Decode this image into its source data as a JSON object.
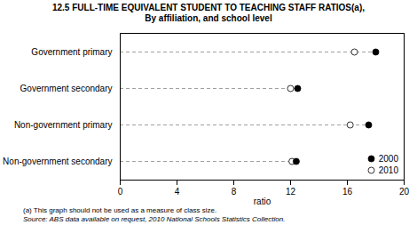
{
  "chart_data": {
    "type": "dot",
    "title": "12.5   FULL-TIME EQUIVALENT STUDENT TO TEACHING STAFF RATIOS(a),",
    "subtitle": "By affiliation, and school level",
    "categories": [
      "Government primary",
      "Government secondary",
      "Non-government primary",
      "Non-government secondary"
    ],
    "series": [
      {
        "name": "2000",
        "color": "#000000",
        "marker": "circle",
        "values": [
          18.0,
          12.5,
          17.5,
          12.4
        ]
      },
      {
        "name": "2010",
        "color": "#ffffff",
        "marker": "circle",
        "values": [
          16.5,
          12.0,
          16.2,
          12.1
        ]
      }
    ],
    "orientation": "horizontal",
    "xlabel": "ratio",
    "xlim": [
      0,
      20
    ],
    "xticks": [
      0,
      4,
      8,
      12,
      16,
      20
    ],
    "grid": false,
    "legend": "lower right",
    "annotations": [
      "(a) This graph should not be used as a measure of class size.",
      "Source: ABS data available on request, 2010 National Schools Statistics Collection."
    ]
  }
}
